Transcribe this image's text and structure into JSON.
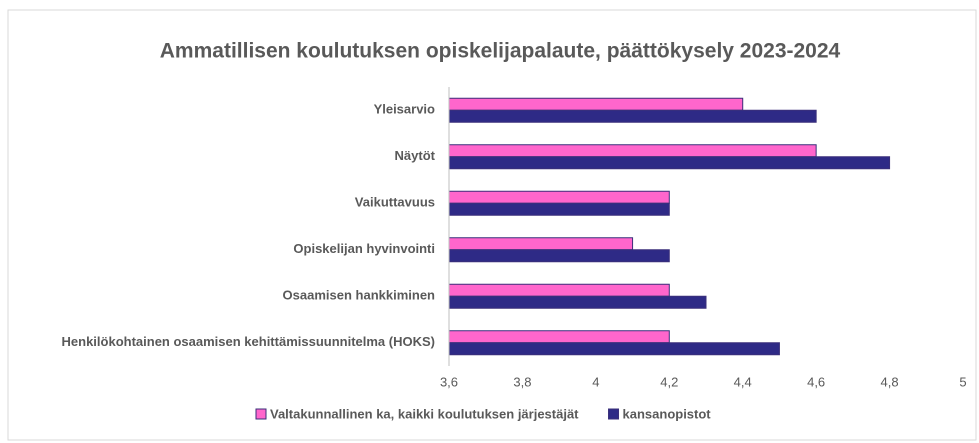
{
  "chart_data": {
    "type": "bar",
    "orientation": "horizontal",
    "title": "Ammatillisen koulutuksen opiskelijapalaute, päättökysely 2023-2024",
    "categories": [
      "Yleisarvio",
      "Näytöt",
      "Vaikuttavuus",
      "Opiskelijan hyvinvointi",
      "Osaamisen hankkiminen",
      "Henkilökohtainen osaamisen kehittämissuunnitelma (HOKS)"
    ],
    "series": [
      {
        "name": "Valtakunnallinen ka, kaikki koulutuksen järjestäjät",
        "color": "#ff66cc",
        "values": [
          4.4,
          4.6,
          4.2,
          4.1,
          4.2,
          4.2
        ]
      },
      {
        "name": "kansanopistot",
        "color": "#2e2a86",
        "values": [
          4.6,
          4.8,
          4.2,
          4.2,
          4.3,
          4.5
        ]
      }
    ],
    "xlim": [
      3.6,
      5
    ],
    "xticks": [
      {
        "value": 3.6,
        "label": "3,6"
      },
      {
        "value": 3.8,
        "label": "3,8"
      },
      4,
      {
        "value": 4.2,
        "label": "4,2"
      },
      {
        "value": 4.4,
        "label": "4,4"
      },
      {
        "value": 4.6,
        "label": "4,6"
      },
      {
        "value": 4.8,
        "label": "4,8"
      },
      5
    ],
    "grid": false,
    "legend": "bottom"
  }
}
